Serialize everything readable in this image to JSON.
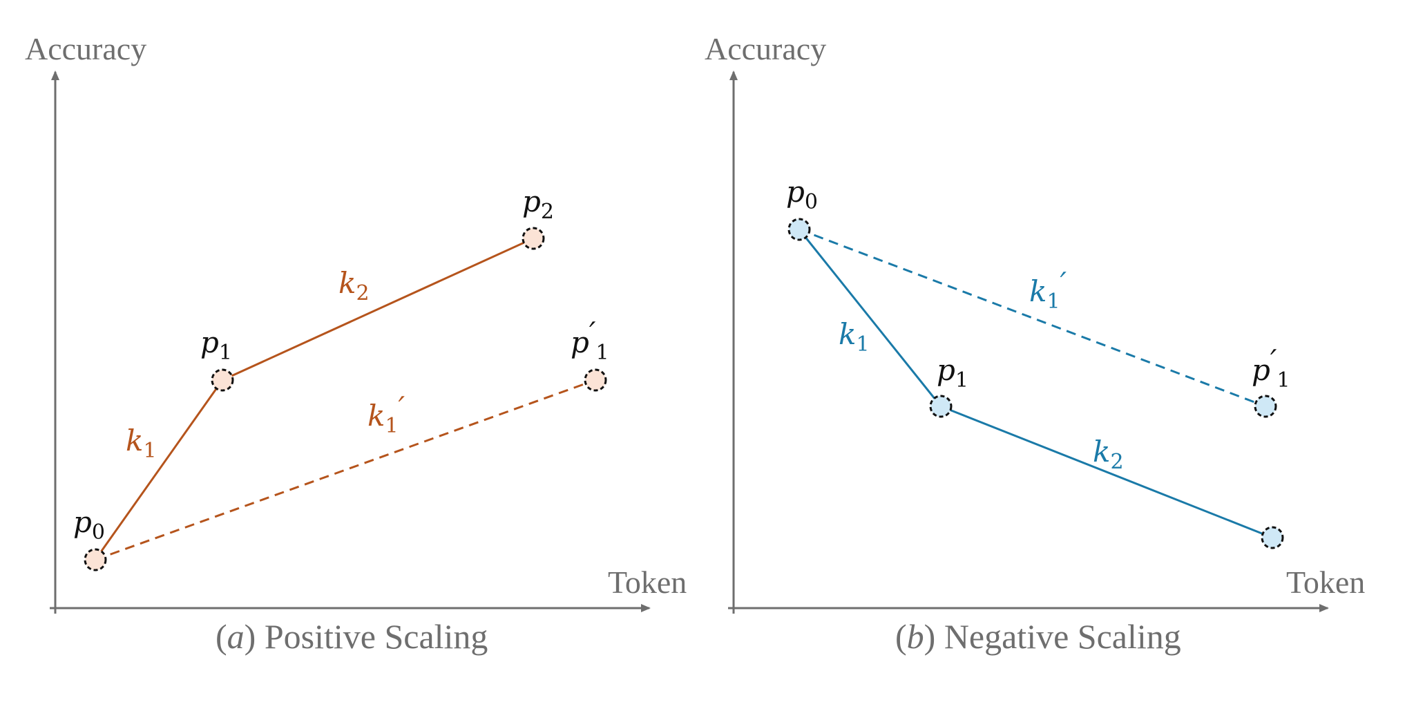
{
  "colors": {
    "axis": "#6e6e6e",
    "positive_line": "#b5541c",
    "positive_fill": "#fbe3d6",
    "negative_line": "#1a7aa8",
    "negative_fill": "#cfe8f6",
    "marker_stroke": "#111111"
  },
  "panels": [
    {
      "id": "positive",
      "y_axis_label": "Accuracy",
      "x_axis_label": "Token",
      "caption_letter": "a",
      "caption_text": "Positive Scaling",
      "points": {
        "p0": {
          "label": "p",
          "sub": "0",
          "prime": ""
        },
        "p1": {
          "label": "p",
          "sub": "1",
          "prime": ""
        },
        "p2": {
          "label": "p",
          "sub": "2",
          "prime": ""
        },
        "p1p": {
          "label": "p",
          "sub": "1",
          "prime": "′"
        }
      },
      "segments": {
        "k1": {
          "label": "k",
          "sub": "1",
          "prime": ""
        },
        "k2": {
          "label": "k",
          "sub": "2",
          "prime": ""
        },
        "k1p": {
          "label": "k",
          "sub": "1",
          "prime": "′"
        }
      }
    },
    {
      "id": "negative",
      "y_axis_label": "Accuracy",
      "x_axis_label": "Token",
      "caption_letter": "b",
      "caption_text": "Negative Scaling",
      "points": {
        "p0": {
          "label": "p",
          "sub": "0",
          "prime": ""
        },
        "p1": {
          "label": "p",
          "sub": "1",
          "prime": ""
        },
        "p1p": {
          "label": "p",
          "sub": "1",
          "prime": "′"
        }
      },
      "segments": {
        "k1": {
          "label": "k",
          "sub": "1",
          "prime": ""
        },
        "k2": {
          "label": "k",
          "sub": "2",
          "prime": ""
        },
        "k1p": {
          "label": "k",
          "sub": "1",
          "prime": "′"
        }
      }
    }
  ]
}
